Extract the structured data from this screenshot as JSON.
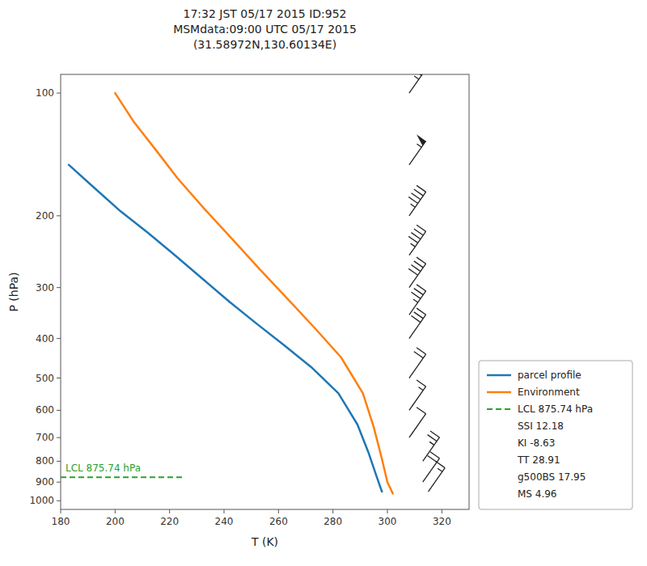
{
  "chart_data": {
    "type": "line",
    "title": "17:32 JST 05/17 2015  ID:952\nMSMdata:09:00 UTC 05/17 2015\n(31.58972N,130.60134E)",
    "x_label": "T (K)",
    "y_label": "P (hPa)",
    "xlim": [
      180,
      330
    ],
    "ylim": [
      1050,
      90
    ],
    "xticks": [
      180,
      200,
      220,
      240,
      260,
      280,
      300,
      320
    ],
    "yticks": [
      100,
      200,
      300,
      400,
      500,
      600,
      700,
      800,
      900,
      1000
    ],
    "log": "y",
    "grid": false,
    "legend": "lower right",
    "series": [
      {
        "name": "parcel profile",
        "color": "#1f77b4",
        "line_style": "solid",
        "x": [
          183,
          192,
          202,
          212,
          222,
          232,
          242,
          252,
          262,
          272,
          282,
          289,
          293,
          296,
          298
        ],
        "values": [
          150,
          170,
          195,
          220,
          250,
          285,
          325,
          368,
          415,
          470,
          545,
          650,
          760,
          870,
          950
        ]
      },
      {
        "name": "Environment",
        "color": "#ff7f0e",
        "line_style": "solid",
        "x": [
          200,
          207,
          215,
          223,
          233,
          243,
          253,
          263,
          273,
          283,
          291,
          295,
          298,
          300,
          302
        ],
        "values": [
          100,
          118,
          138,
          162,
          193,
          228,
          270,
          318,
          375,
          445,
          545,
          660,
          790,
          900,
          960
        ]
      },
      {
        "name": "LCL 875.74 hPa",
        "color": "#2ca02c",
        "line_style": "dashed",
        "x": [
          180,
          225
        ],
        "values": [
          875.74,
          875.74
        ]
      }
    ],
    "annotations": [
      {
        "text": "LCL 875.74 hPa",
        "color": "#2ca02c"
      }
    ],
    "stats": [
      "SSI 12.18",
      "KI -8.63",
      "TT 28.91",
      "g500BS 17.95",
      "MS 4.96"
    ],
    "wind_barbs": {
      "pressure": [
        100,
        150,
        200,
        250,
        300,
        350,
        400,
        500,
        600,
        700,
        800,
        900,
        950
      ],
      "x": [
        308,
        308,
        308,
        308,
        308,
        308,
        308,
        308,
        308,
        308,
        313,
        313,
        315
      ],
      "knots": [
        65,
        55,
        45,
        45,
        40,
        35,
        30,
        20,
        15,
        10,
        25,
        20,
        15
      ]
    }
  }
}
